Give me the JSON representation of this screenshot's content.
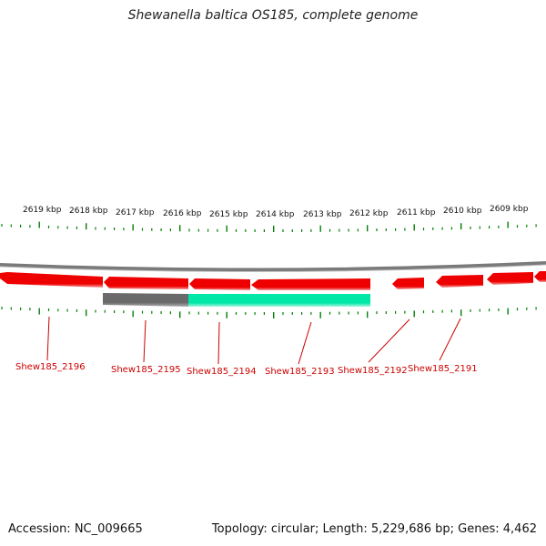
{
  "title": "Shewanella baltica OS185, complete genome",
  "accession_text": "Accession: NC_009665",
  "summary_text": "Topology: circular; Length: 5,229,686 bp; Genes: 4,462",
  "colors": {
    "backbone": "#808080",
    "gene_fill": "#ee0000",
    "gene_shade": "#f08080",
    "tick": "#008000",
    "label": "#cc0000",
    "feature_gray": "#666666",
    "feature_teal": "#00e0a0"
  },
  "ticks": [
    {
      "label": "2619 kbp"
    },
    {
      "label": "2618 kbp"
    },
    {
      "label": "2617 kbp"
    },
    {
      "label": "2616 kbp"
    },
    {
      "label": "2615 kbp"
    },
    {
      "label": "2614 kbp"
    },
    {
      "label": "2613 kbp"
    },
    {
      "label": "2612 kbp"
    },
    {
      "label": "2611 kbp"
    },
    {
      "label": "2610 kbp"
    },
    {
      "label": "2609 kbp"
    }
  ],
  "genes": [
    {
      "name": "Shew185_2196"
    },
    {
      "name": "Shew185_2195"
    },
    {
      "name": "Shew185_2194"
    },
    {
      "name": "Shew185_2193"
    },
    {
      "name": "Shew185_2192"
    },
    {
      "name": "Shew185_2191"
    }
  ]
}
